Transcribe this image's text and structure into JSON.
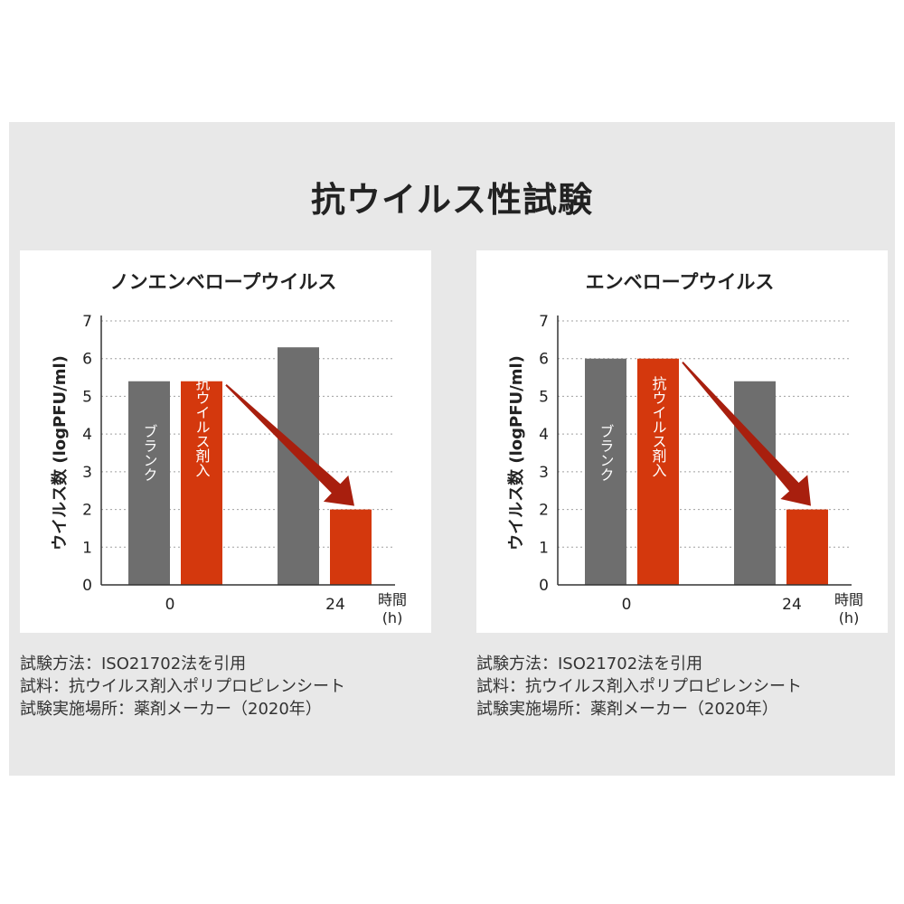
{
  "title": "抗ウイルス性試験",
  "colors": {
    "blank": "#6e6e6e",
    "treated": "#d4380d",
    "arrow": "#a81f0e",
    "grid": "#a0a0a0",
    "axis": "#333333",
    "text": "#222222"
  },
  "chart_data": [
    {
      "type": "bar",
      "title": "ノンエンベロープウイルス",
      "ylabel": "ウイルス数 (logPFU/ml)",
      "xlabel": [
        "時間",
        "(h)"
      ],
      "ylim": [
        0,
        7
      ],
      "yticks": [
        0,
        1,
        2,
        3,
        4,
        5,
        6,
        7
      ],
      "categories": [
        "0",
        "24"
      ],
      "series": [
        {
          "name": "ブランク",
          "values": [
            5.4,
            6.3
          ]
        },
        {
          "name": "抗ウイルス剤入",
          "values": [
            5.4,
            2.0
          ]
        }
      ],
      "grid": true
    },
    {
      "type": "bar",
      "title": "エンベロープウイルス",
      "ylabel": "ウイルス数 (logPFU/ml)",
      "xlabel": [
        "時間",
        "(h)"
      ],
      "ylim": [
        0,
        7
      ],
      "yticks": [
        0,
        1,
        2,
        3,
        4,
        5,
        6,
        7
      ],
      "categories": [
        "0",
        "24"
      ],
      "series": [
        {
          "name": "ブランク",
          "values": [
            6.0,
            5.4
          ]
        },
        {
          "name": "抗ウイルス剤入",
          "values": [
            6.0,
            2.0
          ]
        }
      ],
      "grid": true
    }
  ],
  "notes": [
    [
      "試験方法：ISO21702法を引用",
      "試料：抗ウイルス剤入ポリプロピレンシート",
      "試験実施場所：薬剤メーカー（2020年）"
    ],
    [
      "試験方法：ISO21702法を引用",
      "試料：抗ウイルス剤入ポリプロピレンシート",
      "試験実施場所：薬剤メーカー（2020年）"
    ]
  ]
}
